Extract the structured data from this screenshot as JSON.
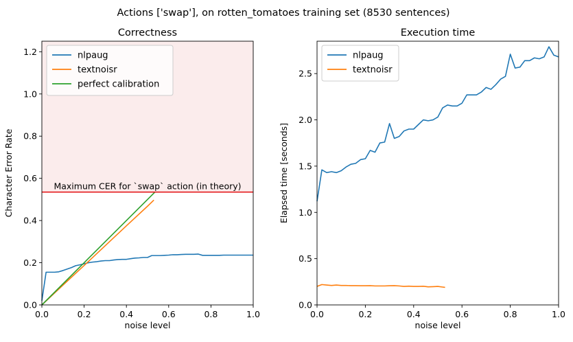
{
  "suptitle": "Actions ['swap'], on rotten_tomatoes training set (8530 sentences)",
  "chart_data": [
    {
      "type": "line",
      "title": "Correctness",
      "xlabel": "noise level",
      "ylabel": "Character Error Rate",
      "xlim": [
        0,
        1
      ],
      "ylim": [
        0,
        1.25
      ],
      "xticks": [
        "0.0",
        "0.2",
        "0.4",
        "0.6",
        "0.8",
        "1.0"
      ],
      "yticks": [
        "0.0",
        "0.2",
        "0.4",
        "0.6",
        "0.8",
        "1.0",
        "1.2"
      ],
      "legend": "upper-left",
      "grid": false,
      "shaded_region": {
        "y_from": 0.535,
        "y_to": 1.25,
        "color": "#f6d5d5"
      },
      "hline": {
        "y": 0.535,
        "color": "#e41a1c",
        "label": "Maximum CER for `swap` action (in theory)"
      },
      "series": [
        {
          "name": "nlpaug",
          "color": "#1f77b4",
          "x": [
            0.0,
            0.02,
            0.04,
            0.06,
            0.08,
            0.1,
            0.12,
            0.14,
            0.16,
            0.18,
            0.2,
            0.22,
            0.24,
            0.26,
            0.28,
            0.3,
            0.32,
            0.34,
            0.36,
            0.38,
            0.4,
            0.42,
            0.44,
            0.46,
            0.48,
            0.5,
            0.52,
            0.54,
            0.56,
            0.58,
            0.6,
            0.62,
            0.64,
            0.66,
            0.68,
            0.7,
            0.72,
            0.74,
            0.76,
            0.78,
            0.8,
            0.82,
            0.84,
            0.86,
            0.88,
            0.9,
            0.92,
            0.94,
            0.96,
            0.98,
            1.0
          ],
          "y": [
            0.02,
            0.155,
            0.155,
            0.155,
            0.157,
            0.163,
            0.17,
            0.177,
            0.186,
            0.19,
            0.195,
            0.2,
            0.203,
            0.205,
            0.208,
            0.21,
            0.21,
            0.213,
            0.215,
            0.216,
            0.216,
            0.219,
            0.222,
            0.223,
            0.225,
            0.225,
            0.234,
            0.234,
            0.234,
            0.235,
            0.236,
            0.238,
            0.238,
            0.239,
            0.24,
            0.24,
            0.24,
            0.241,
            0.235,
            0.235,
            0.235,
            0.235,
            0.235,
            0.236,
            0.236,
            0.236,
            0.236,
            0.236,
            0.236,
            0.236,
            0.236
          ]
        },
        {
          "name": "textnoisr",
          "color": "#ff7f0e",
          "x": [
            0.0,
            0.1,
            0.2,
            0.3,
            0.4,
            0.5,
            0.53
          ],
          "y": [
            0.0,
            0.094,
            0.187,
            0.281,
            0.375,
            0.468,
            0.497
          ]
        },
        {
          "name": " perfect calibration",
          "color": "#2ca02c",
          "x": [
            0.0,
            0.535
          ],
          "y": [
            0.0,
            0.535
          ]
        }
      ]
    },
    {
      "type": "line",
      "title": "Execution time",
      "xlabel": "noise level",
      "ylabel": "Elapsed time [seconds]",
      "xlim": [
        0,
        1
      ],
      "ylim": [
        0,
        2.85
      ],
      "xticks": [
        "0.0",
        "0.2",
        "0.4",
        "0.6",
        "0.8",
        "1.0"
      ],
      "yticks": [
        "0.0",
        "0.5",
        "1.0",
        "1.5",
        "2.0",
        "2.5"
      ],
      "legend": "upper-left",
      "grid": false,
      "series": [
        {
          "name": "nlpaug",
          "color": "#1f77b4",
          "x": [
            0.0,
            0.02,
            0.04,
            0.06,
            0.08,
            0.1,
            0.12,
            0.14,
            0.16,
            0.18,
            0.2,
            0.22,
            0.24,
            0.26,
            0.28,
            0.3,
            0.32,
            0.34,
            0.36,
            0.38,
            0.4,
            0.42,
            0.44,
            0.46,
            0.48,
            0.5,
            0.52,
            0.54,
            0.56,
            0.58,
            0.6,
            0.62,
            0.64,
            0.66,
            0.68,
            0.7,
            0.72,
            0.74,
            0.76,
            0.78,
            0.8,
            0.82,
            0.84,
            0.86,
            0.88,
            0.9,
            0.92,
            0.94,
            0.96,
            0.98,
            1.0
          ],
          "y": [
            1.12,
            1.46,
            1.43,
            1.44,
            1.43,
            1.45,
            1.49,
            1.52,
            1.53,
            1.57,
            1.58,
            1.67,
            1.65,
            1.75,
            1.76,
            1.96,
            1.8,
            1.82,
            1.88,
            1.9,
            1.9,
            1.95,
            2.0,
            1.99,
            2.0,
            2.03,
            2.13,
            2.16,
            2.15,
            2.15,
            2.18,
            2.27,
            2.27,
            2.27,
            2.3,
            2.35,
            2.33,
            2.38,
            2.44,
            2.47,
            2.71,
            2.56,
            2.57,
            2.64,
            2.64,
            2.67,
            2.66,
            2.68,
            2.79,
            2.7,
            2.68
          ]
        },
        {
          "name": "textnoisr",
          "color": "#ff7f0e",
          "x": [
            0.0,
            0.02,
            0.04,
            0.06,
            0.08,
            0.1,
            0.12,
            0.14,
            0.16,
            0.18,
            0.2,
            0.22,
            0.24,
            0.26,
            0.28,
            0.3,
            0.32,
            0.34,
            0.36,
            0.38,
            0.4,
            0.42,
            0.44,
            0.46,
            0.48,
            0.5,
            0.52,
            0.53
          ],
          "y": [
            0.2,
            0.22,
            0.215,
            0.21,
            0.215,
            0.21,
            0.21,
            0.208,
            0.208,
            0.207,
            0.207,
            0.208,
            0.205,
            0.205,
            0.205,
            0.207,
            0.208,
            0.205,
            0.2,
            0.203,
            0.2,
            0.2,
            0.202,
            0.195,
            0.197,
            0.2,
            0.193,
            0.19
          ]
        }
      ]
    }
  ]
}
